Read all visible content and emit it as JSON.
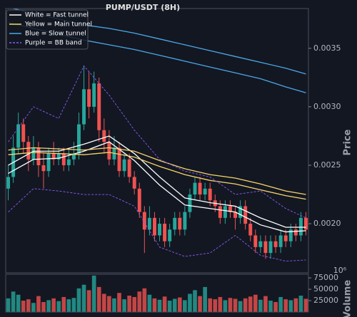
{
  "chart_data": {
    "type": "candlestick",
    "title": "PUMP/USDT (8H)",
    "y_label": "Price",
    "xlim": [
      -0.5,
      59.5
    ],
    "ylim": [
      0.00158,
      0.00384
    ],
    "yticks": [
      {
        "value": 0.002,
        "label": "0.0020"
      },
      {
        "value": 0.0025,
        "label": "0.0025"
      },
      {
        "value": 0.003,
        "label": "0.0030"
      },
      {
        "value": 0.0035,
        "label": "0.0035"
      }
    ],
    "up_color": "#26a69a",
    "down_color": "#ef5350",
    "candles": {
      "open": [
        0.0023,
        0.0024,
        0.00265,
        0.00285,
        0.0027,
        0.00255,
        0.00265,
        0.0025,
        0.00245,
        0.0026,
        0.00255,
        0.0026,
        0.0025,
        0.00255,
        0.0026,
        0.00285,
        0.00315,
        0.003,
        0.0032,
        0.0028,
        0.0027,
        0.00255,
        0.00265,
        0.00245,
        0.00255,
        0.0024,
        0.0023,
        0.0021,
        0.00195,
        0.00205,
        0.0019,
        0.002,
        0.00185,
        0.00195,
        0.00205,
        0.00195,
        0.0021,
        0.00225,
        0.00235,
        0.00225,
        0.0023,
        0.0022,
        0.00215,
        0.00205,
        0.00215,
        0.0021,
        0.00205,
        0.00215,
        0.002,
        0.0019,
        0.0018,
        0.00185,
        0.00175,
        0.00185,
        0.0018,
        0.0019,
        0.00185,
        0.00195,
        0.0019,
        0.00205
      ],
      "high": [
        0.0025,
        0.00275,
        0.00295,
        0.0029,
        0.00275,
        0.00275,
        0.0027,
        0.0026,
        0.00265,
        0.0027,
        0.00265,
        0.00265,
        0.00265,
        0.0027,
        0.00295,
        0.00335,
        0.0033,
        0.0033,
        0.00325,
        0.0029,
        0.0028,
        0.00275,
        0.0027,
        0.0026,
        0.0026,
        0.00245,
        0.00235,
        0.00215,
        0.00215,
        0.0021,
        0.00205,
        0.00205,
        0.002,
        0.0021,
        0.0021,
        0.00215,
        0.0023,
        0.0024,
        0.0024,
        0.00235,
        0.00235,
        0.00225,
        0.0022,
        0.0022,
        0.0022,
        0.00215,
        0.0022,
        0.0022,
        0.00205,
        0.00195,
        0.0019,
        0.0019,
        0.0019,
        0.0019,
        0.00195,
        0.00195,
        0.002,
        0.002,
        0.0021,
        0.0021
      ],
      "low": [
        0.0022,
        0.00235,
        0.0026,
        0.0026,
        0.00245,
        0.0025,
        0.0024,
        0.0023,
        0.0024,
        0.0025,
        0.0025,
        0.00245,
        0.00245,
        0.0025,
        0.00255,
        0.0028,
        0.0029,
        0.00295,
        0.0027,
        0.0026,
        0.0025,
        0.0025,
        0.0024,
        0.0024,
        0.00235,
        0.00225,
        0.00205,
        0.00175,
        0.0019,
        0.00185,
        0.00185,
        0.0018,
        0.0018,
        0.0019,
        0.0019,
        0.0019,
        0.00205,
        0.0022,
        0.0022,
        0.0022,
        0.00215,
        0.0021,
        0.002,
        0.002,
        0.00205,
        0.00195,
        0.002,
        0.00195,
        0.00185,
        0.00175,
        0.00175,
        0.0017,
        0.0017,
        0.00175,
        0.00175,
        0.0018,
        0.0018,
        0.00185,
        0.00185,
        0.0019
      ],
      "close": [
        0.0024,
        0.00265,
        0.00285,
        0.0027,
        0.00255,
        0.00265,
        0.0025,
        0.00245,
        0.0026,
        0.00255,
        0.0026,
        0.0025,
        0.00255,
        0.0026,
        0.00285,
        0.00315,
        0.003,
        0.0032,
        0.0028,
        0.0027,
        0.00255,
        0.00265,
        0.00245,
        0.00255,
        0.0024,
        0.0023,
        0.0021,
        0.00195,
        0.00205,
        0.0019,
        0.002,
        0.00185,
        0.00195,
        0.00205,
        0.00195,
        0.0021,
        0.00225,
        0.00235,
        0.00225,
        0.0023,
        0.0022,
        0.00215,
        0.00205,
        0.00215,
        0.0021,
        0.00205,
        0.00215,
        0.002,
        0.0019,
        0.0018,
        0.00185,
        0.00175,
        0.00185,
        0.0018,
        0.0019,
        0.00185,
        0.00195,
        0.0019,
        0.00205,
        0.00195
      ]
    },
    "line_x": [
      0,
      5,
      10,
      15,
      20,
      25,
      30,
      35,
      40,
      45,
      50,
      55,
      59
    ],
    "lines": [
      {
        "name": "White = Fast tunnel",
        "color": "#ffffff",
        "dashed": false,
        "upper": [
          0.0025,
          0.00262,
          0.00262,
          0.00268,
          0.00275,
          0.0026,
          0.0024,
          0.00222,
          0.00218,
          0.00215,
          0.00205,
          0.00197,
          0.00197
        ],
        "lower": [
          0.00243,
          0.00255,
          0.00256,
          0.00262,
          0.0027,
          0.00254,
          0.00233,
          0.00216,
          0.00213,
          0.0021,
          0.00199,
          0.00193,
          0.00194
        ]
      },
      {
        "name": "Yellow = Main tunnel",
        "color": "#f5d469",
        "dashed": false,
        "upper": [
          0.00263,
          0.00265,
          0.00264,
          0.00263,
          0.00265,
          0.00262,
          0.00254,
          0.00247,
          0.00242,
          0.00239,
          0.00234,
          0.00228,
          0.00225
        ],
        "lower": [
          0.00259,
          0.00261,
          0.0026,
          0.00259,
          0.00261,
          0.00257,
          0.00249,
          0.00242,
          0.00237,
          0.00234,
          0.00229,
          0.00224,
          0.00221
        ]
      },
      {
        "name": "Blue = Slow tunnel",
        "color": "#4aa8e8",
        "dashed": false,
        "upper": [
          0.00385,
          0.0038,
          0.00375,
          0.0037,
          0.00367,
          0.00363,
          0.00358,
          0.00353,
          0.00348,
          0.00343,
          0.00338,
          0.00333,
          0.00328
        ],
        "lower": [
          0.00372,
          0.00367,
          0.00362,
          0.00357,
          0.00353,
          0.00349,
          0.00344,
          0.00339,
          0.00334,
          0.00329,
          0.00324,
          0.00317,
          0.00312
        ]
      },
      {
        "name": "Purple = BB band",
        "color": "#8b5cf6",
        "dashed": true,
        "upper": [
          0.0027,
          0.003,
          0.0029,
          0.00335,
          0.0031,
          0.0028,
          0.00255,
          0.00245,
          0.0024,
          0.00225,
          0.00228,
          0.00213,
          0.00205
        ],
        "lower": [
          0.0021,
          0.0023,
          0.00228,
          0.00225,
          0.00225,
          0.00215,
          0.0018,
          0.00172,
          0.00175,
          0.0019,
          0.00173,
          0.00168,
          0.00169
        ]
      }
    ],
    "volume": {
      "label": "Volume",
      "offset_label": "10⁶",
      "ylim": [
        0,
        83000
      ],
      "yticks": [
        25000,
        50000,
        75000
      ],
      "values": [
        30000,
        45000,
        38000,
        25000,
        28000,
        20000,
        35000,
        22000,
        26000,
        30000,
        24000,
        33000,
        28000,
        31000,
        52000,
        60000,
        48000,
        80000,
        55000,
        40000,
        35000,
        30000,
        42000,
        28000,
        36000,
        33000,
        45000,
        52000,
        38000,
        30000,
        27000,
        34000,
        25000,
        29000,
        32000,
        26000,
        40000,
        48000,
        35000,
        55000,
        30000,
        28000,
        33000,
        26000,
        31000,
        29000,
        24000,
        30000,
        34000,
        38000,
        27000,
        35000,
        25000,
        22000,
        33000,
        28000,
        26000,
        30000,
        36000,
        29000
      ]
    }
  }
}
